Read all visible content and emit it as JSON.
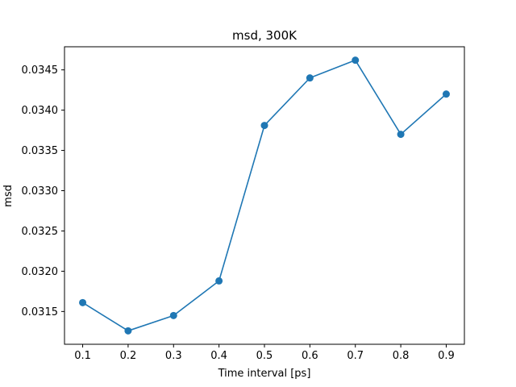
{
  "chart_data": {
    "type": "line",
    "title": "msd, 300K",
    "xlabel": "Time interval [ps]",
    "ylabel": "msd",
    "x": [
      0.1,
      0.2,
      0.3,
      0.4,
      0.5,
      0.6,
      0.7,
      0.8,
      0.9
    ],
    "series": [
      {
        "values": [
          0.03161,
          0.03126,
          0.03145,
          0.03188,
          0.03381,
          0.0344,
          0.03462,
          0.0337,
          0.0342
        ],
        "color": "#1f77b4",
        "marker": "circle"
      }
    ],
    "xticks": [
      "0.1",
      "0.2",
      "0.3",
      "0.4",
      "0.5",
      "0.6",
      "0.7",
      "0.8",
      "0.9"
    ],
    "yticks": [
      "0.0315",
      "0.0320",
      "0.0325",
      "0.0330",
      "0.0335",
      "0.0340",
      "0.0345"
    ],
    "xlim": [
      0.06,
      0.94
    ],
    "ylim": [
      0.031093,
      0.034787
    ],
    "grid": false,
    "legend": "none"
  }
}
